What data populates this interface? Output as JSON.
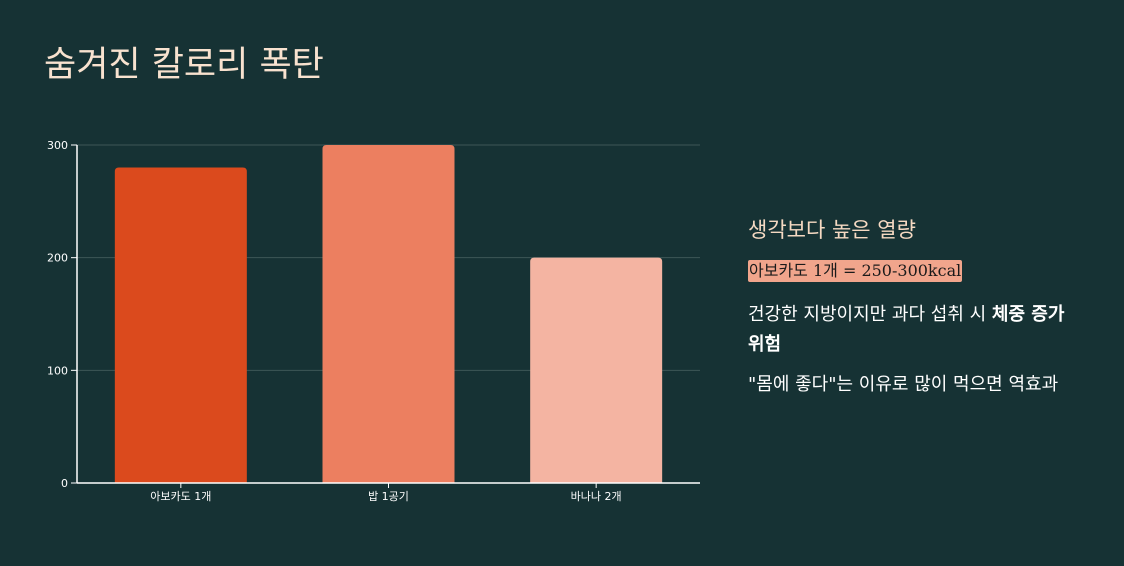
{
  "title": "숨겨진 칼로리 폭탄",
  "chart_data": {
    "type": "bar",
    "categories": [
      "아보카도 1개",
      "밥 1공기",
      "바나나 2개"
    ],
    "values": [
      280,
      300,
      200
    ],
    "colors": [
      "#db4a1d",
      "#ec7f60",
      "#f4b4a2"
    ],
    "yticks": [
      "0",
      "100",
      "200",
      "300"
    ],
    "ylim": [
      0,
      300
    ],
    "grid": true,
    "legend": "none"
  },
  "panel": {
    "heading": "생각보다 높은 열량",
    "highlight": "아보카도 1개 = 250-300kcal",
    "paragraph1_prefix": "건강한 지방이지만 과다 섭취 시 ",
    "paragraph1_bold": "체중 증가 위험",
    "paragraph2": "\"몸에 좋다\"는 이유로 많이 먹으면 역효과"
  },
  "colors": {
    "background": "#163234",
    "title": "#f8e2cf",
    "highlight_bg": "#f1a58c",
    "grid": "#3d5756",
    "axis": "#ffffff"
  }
}
